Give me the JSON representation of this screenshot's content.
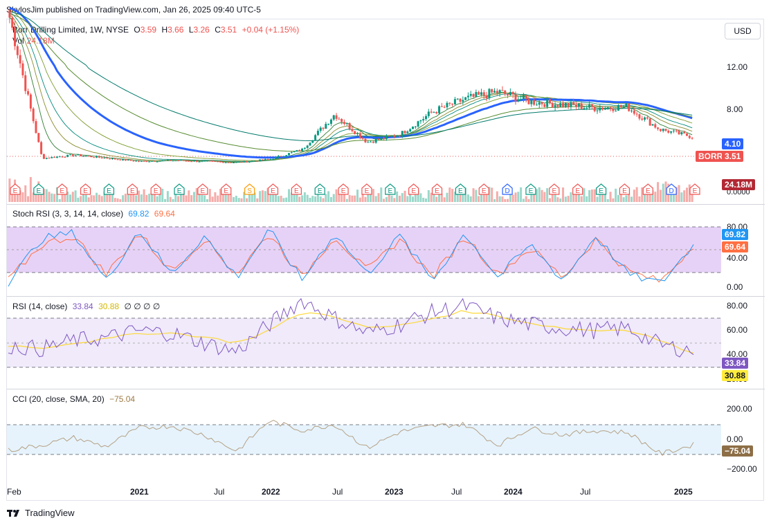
{
  "publisher": "SkylosJim published on TradingView.com, Jan 26, 2025 09:40 UTC-5",
  "currency_button": "USD",
  "main": {
    "title": "Borr Drilling Limited, 1W, NYSE",
    "o_label": "O",
    "o": "3.59",
    "h_label": "H",
    "h": "3.66",
    "l_label": "L",
    "l": "3.26",
    "c_label": "C",
    "c": "3.51",
    "change": "+0.04 (+1.15%)",
    "vol_label": "Vol",
    "vol": "24.18M",
    "y_ticks": [
      "12.00",
      "8.00",
      "0.0000"
    ],
    "tag_ma": "4.10",
    "tag_symbol": "BORR",
    "tag_price": "3.51",
    "tag_vol": "24.18M"
  },
  "stoch": {
    "title": "Stoch RSI (3, 3, 14, 14, close)",
    "k": "69.82",
    "d": "69.64",
    "y_ticks": [
      "80.00",
      "40.00",
      "0.00"
    ]
  },
  "rsi": {
    "title": "RSI (14, close)",
    "rsi": "33.84",
    "ma": "30.88",
    "extra": "∅ ∅ ∅ ∅",
    "y_ticks": [
      "80.00",
      "60.00",
      "40.00",
      "20.00"
    ]
  },
  "cci": {
    "title": "CCI (20, close, SMA, 20)",
    "value": "−75.04",
    "y_ticks": [
      "200.00",
      "0.00",
      "−200.00"
    ]
  },
  "x_labels": [
    "Feb",
    "2021",
    "Jul",
    "2022",
    "Jul",
    "2023",
    "Jul",
    "2024",
    "Jul",
    "2025"
  ],
  "logo_text": "TradingView",
  "earnings_markers": [
    "E",
    "E",
    "E",
    "E",
    "E",
    "E",
    "E",
    "E",
    "E",
    "E",
    "S",
    "E",
    "E",
    "E",
    "E",
    "E",
    "E",
    "E",
    "E",
    "E",
    "E",
    "D",
    "E",
    "E",
    "E",
    "E",
    "E",
    "E",
    "D",
    "E"
  ],
  "colors": {
    "up": "#089981",
    "down": "#ef5350",
    "ma": "#2962ff",
    "stoch_k": "#2196f3",
    "stoch_d": "#ff7043",
    "rsi": "#7e57c2",
    "rsi_ma": "#fdd835",
    "cci": "#b5a085"
  },
  "chart_data": [
    {
      "type": "line",
      "title": "Borr Drilling Limited, 1W, NYSE (approx. weekly close)",
      "x": [
        "2020-02",
        "2020-04",
        "2020-06",
        "2020-09",
        "2020-12",
        "2021-03",
        "2021-06",
        "2021-09",
        "2021-12",
        "2022-03",
        "2022-05",
        "2022-07",
        "2022-10",
        "2023-01",
        "2023-04",
        "2023-07",
        "2023-10",
        "2024-01",
        "2024-04",
        "2024-07",
        "2024-10",
        "2025-01"
      ],
      "series": [
        {
          "name": "Close",
          "values": [
            14.5,
            1.5,
            1.8,
            1.5,
            1.2,
            1.3,
            1.2,
            1.1,
            1.4,
            2.3,
            5.6,
            3.0,
            3.7,
            5.8,
            7.0,
            7.7,
            6.8,
            6.5,
            6.2,
            6.3,
            4.2,
            3.51
          ]
        }
      ],
      "ylim": [
        0,
        15
      ]
    },
    {
      "type": "line",
      "title": "Stoch RSI (3, 3, 14, 14, close)",
      "series": [
        {
          "name": "K",
          "values": [
            5,
            80,
            90,
            10,
            95,
            20,
            85,
            15,
            95,
            10,
            90,
            20,
            85,
            10,
            90,
            15,
            70,
            10,
            85,
            20,
            5,
            69.82
          ]
        },
        {
          "name": "D",
          "values": [
            10,
            70,
            85,
            20,
            90,
            25,
            80,
            20,
            90,
            15,
            85,
            25,
            80,
            15,
            85,
            20,
            65,
            15,
            80,
            25,
            8,
            69.64
          ]
        }
      ],
      "ylim": [
        0,
        100
      ]
    },
    {
      "type": "line",
      "title": "RSI (14, close)",
      "series": [
        {
          "name": "RSI",
          "values": [
            38,
            35,
            42,
            44,
            50,
            48,
            40,
            33,
            55,
            75,
            60,
            48,
            55,
            65,
            70,
            60,
            55,
            52,
            50,
            52,
            38,
            33.84
          ]
        },
        {
          "name": "RSI MA",
          "values": [
            38,
            36,
            40,
            43,
            48,
            48,
            45,
            40,
            50,
            65,
            62,
            52,
            54,
            60,
            66,
            62,
            56,
            52,
            50,
            51,
            42,
            30.88
          ]
        }
      ],
      "ylim": [
        20,
        80
      ]
    },
    {
      "type": "line",
      "title": "CCI (20, close, SMA, 20)",
      "series": [
        {
          "name": "CCI",
          "values": [
            -150,
            -80,
            20,
            -100,
            150,
            180,
            60,
            -160,
            250,
            120,
            200,
            -120,
            100,
            180,
            200,
            -80,
            150,
            60,
            120,
            90,
            -200,
            -75.04
          ]
        }
      ],
      "ylim": [
        -250,
        300
      ]
    }
  ]
}
